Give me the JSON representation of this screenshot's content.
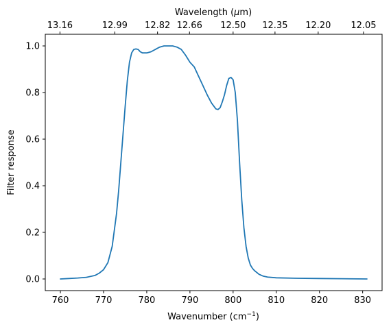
{
  "chart_data": {
    "type": "line",
    "title": "",
    "xlabel": "Wavenumber (cm",
    "xlabel_superscript": "−1",
    "xlabel_suffix": ")",
    "ylabel": "Filter response",
    "top_xlabel_prefix": "Wavelength (",
    "top_xlabel_symbol": "μ",
    "top_xlabel_suffix": "m)",
    "xlim": [
      756.5,
      834.5
    ],
    "ylim": [
      -0.05,
      1.05
    ],
    "x_ticks": [
      760,
      770,
      780,
      790,
      800,
      810,
      820,
      830
    ],
    "x_tick_labels": [
      "760",
      "770",
      "780",
      "790",
      "800",
      "810",
      "820",
      "830"
    ],
    "y_ticks": [
      0.0,
      0.2,
      0.4,
      0.6,
      0.8,
      1.0
    ],
    "y_tick_labels": [
      "0.0",
      "0.2",
      "0.4",
      "0.6",
      "0.8",
      "1.0"
    ],
    "top_ticks_wavenumber": [
      759.9,
      772.6,
      782.5,
      789.9,
      800.0,
      809.7,
      819.7,
      830.2
    ],
    "top_tick_labels": [
      "13.16",
      "12.99",
      "12.82",
      "12.66",
      "12.50",
      "12.35",
      "12.20",
      "12.05"
    ],
    "grid": false,
    "legend": "none",
    "colors": {
      "series": "#1f77b4"
    },
    "series": [
      {
        "x": [
          760,
          762,
          764,
          766,
          768,
          769,
          770,
          771,
          772,
          773,
          773.5,
          774,
          774.5,
          775,
          775.5,
          776,
          776.5,
          777,
          777.5,
          778,
          778.5,
          779,
          780,
          781,
          782,
          783,
          784,
          785,
          786,
          787,
          788,
          789,
          790,
          791,
          792,
          793,
          794,
          795,
          796,
          796.5,
          797,
          797.5,
          798,
          798.5,
          799,
          799.5,
          800,
          800.5,
          801,
          801.5,
          802,
          802.5,
          803,
          803.5,
          804,
          804.5,
          805,
          806,
          807,
          808,
          810,
          815,
          820,
          825,
          831
        ],
        "values": [
          0.0,
          0.002,
          0.004,
          0.007,
          0.015,
          0.025,
          0.04,
          0.07,
          0.14,
          0.28,
          0.38,
          0.5,
          0.62,
          0.74,
          0.85,
          0.93,
          0.97,
          0.985,
          0.987,
          0.985,
          0.975,
          0.97,
          0.97,
          0.975,
          0.985,
          0.995,
          1.0,
          1.0,
          1.0,
          0.995,
          0.985,
          0.96,
          0.93,
          0.91,
          0.87,
          0.83,
          0.79,
          0.755,
          0.73,
          0.727,
          0.735,
          0.76,
          0.79,
          0.83,
          0.86,
          0.865,
          0.855,
          0.8,
          0.68,
          0.5,
          0.34,
          0.22,
          0.14,
          0.09,
          0.06,
          0.045,
          0.035,
          0.02,
          0.012,
          0.008,
          0.005,
          0.003,
          0.002,
          0.001,
          0.0
        ]
      }
    ]
  }
}
